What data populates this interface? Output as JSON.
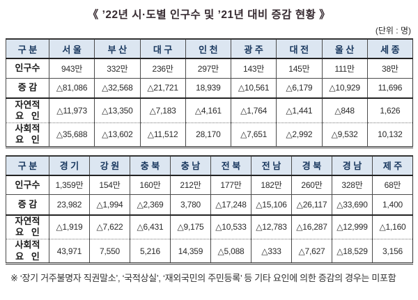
{
  "title": "《 ’22년 시·도별 인구수 및 ’21년 대비 증감 현황 》",
  "unit_label": "(단위 : 명)",
  "colors": {
    "header_bg": "#dce6f1",
    "header_text": "#17365d",
    "border": "#333333",
    "title_text": "#362a30"
  },
  "tables": [
    {
      "corner_label": "구 분",
      "columns": [
        "서 울",
        "부 산",
        "대 구",
        "인 천",
        "광 주",
        "대 전",
        "울 산",
        "세 종"
      ],
      "rows": [
        {
          "key": "pop",
          "label": "인구수",
          "values": [
            "943만",
            "332만",
            "236만",
            "297만",
            "143만",
            "145만",
            "111만",
            "38만"
          ]
        },
        {
          "key": "change",
          "label": "증 감",
          "values": [
            "△81,086",
            "△32,568",
            "△21,721",
            "18,939",
            "△10,561",
            "△6,179",
            "△10,929",
            "11,696"
          ]
        },
        {
          "key": "natural",
          "label": "자연적\n요   인",
          "values": [
            "△11,973",
            "△13,350",
            "△7,183",
            "△4,161",
            "△1,764",
            "△1,441",
            "△848",
            "1,626"
          ]
        },
        {
          "key": "social",
          "label": "사회적\n요   인",
          "values": [
            "△35,688",
            "△13,602",
            "△11,512",
            "28,170",
            "△7,651",
            "△2,992",
            "△9,532",
            "10,132"
          ]
        }
      ]
    },
    {
      "corner_label": "구 분",
      "columns": [
        "경 기",
        "강 원",
        "충 북",
        "충 남",
        "전 북",
        "전 남",
        "경 북",
        "경 남",
        "제 주"
      ],
      "rows": [
        {
          "key": "pop",
          "label": "인구수",
          "values": [
            "1,359만",
            "154만",
            "160만",
            "212만",
            "177만",
            "182만",
            "260만",
            "328만",
            "68만"
          ]
        },
        {
          "key": "change",
          "label": "증 감",
          "values": [
            "23,982",
            "△1,994",
            "△2,369",
            "3,780",
            "△17,248",
            "△15,106",
            "△26,117",
            "△33,690",
            "1,400"
          ]
        },
        {
          "key": "natural",
          "label": "자연적\n요   인",
          "values": [
            "△1,919",
            "△7,622",
            "△6,431",
            "△9,175",
            "△10,533",
            "△12,783",
            "△16,287",
            "△12,999",
            "△1,160"
          ]
        },
        {
          "key": "social",
          "label": "사회적\n요   인",
          "values": [
            "43,971",
            "7,550",
            "5,216",
            "14,359",
            "△5,088",
            "△333",
            "△7,627",
            "△18,529",
            "3,156"
          ]
        }
      ]
    }
  ],
  "footnote": "※ ‘장기 거주불명자 직권말소’, ‘국적상실’, ‘재외국민의 주민등록’ 등 기타 요인에 의한 증감의 경우는 미포함"
}
